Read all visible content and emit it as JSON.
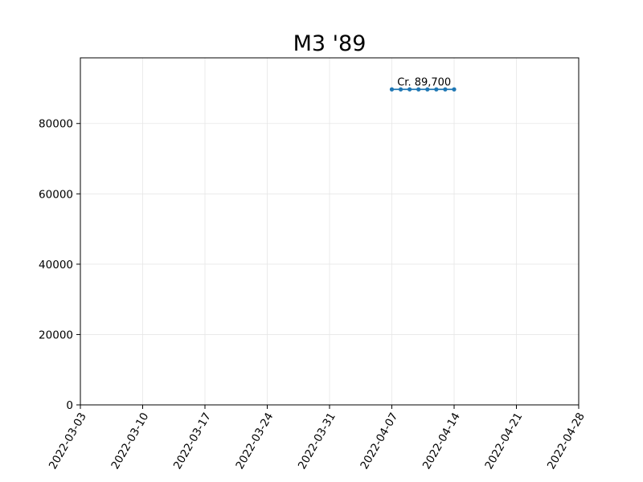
{
  "chart_data": {
    "type": "line",
    "title": "M3 '89",
    "xlabel": "",
    "ylabel": "",
    "x_type": "date",
    "xlim": [
      "2022-03-03",
      "2022-04-28"
    ],
    "ylim": [
      0,
      98670
    ],
    "x_ticks": [
      "2022-03-03",
      "2022-03-10",
      "2022-03-17",
      "2022-03-24",
      "2022-03-31",
      "2022-04-07",
      "2022-04-14",
      "2022-04-21",
      "2022-04-28"
    ],
    "y_ticks": [
      0,
      20000,
      40000,
      60000,
      80000
    ],
    "grid": true,
    "series": [
      {
        "color": "#1f77b4",
        "x": [
          "2022-04-07",
          "2022-04-08",
          "2022-04-09",
          "2022-04-10",
          "2022-04-11",
          "2022-04-12",
          "2022-04-13",
          "2022-04-14"
        ],
        "y": [
          89700,
          89700,
          89700,
          89700,
          89700,
          89700,
          89700,
          89700
        ]
      }
    ],
    "annotations": [
      {
        "text": "Cr. 89,700",
        "x": "2022-04-10",
        "y": 89700
      }
    ]
  }
}
